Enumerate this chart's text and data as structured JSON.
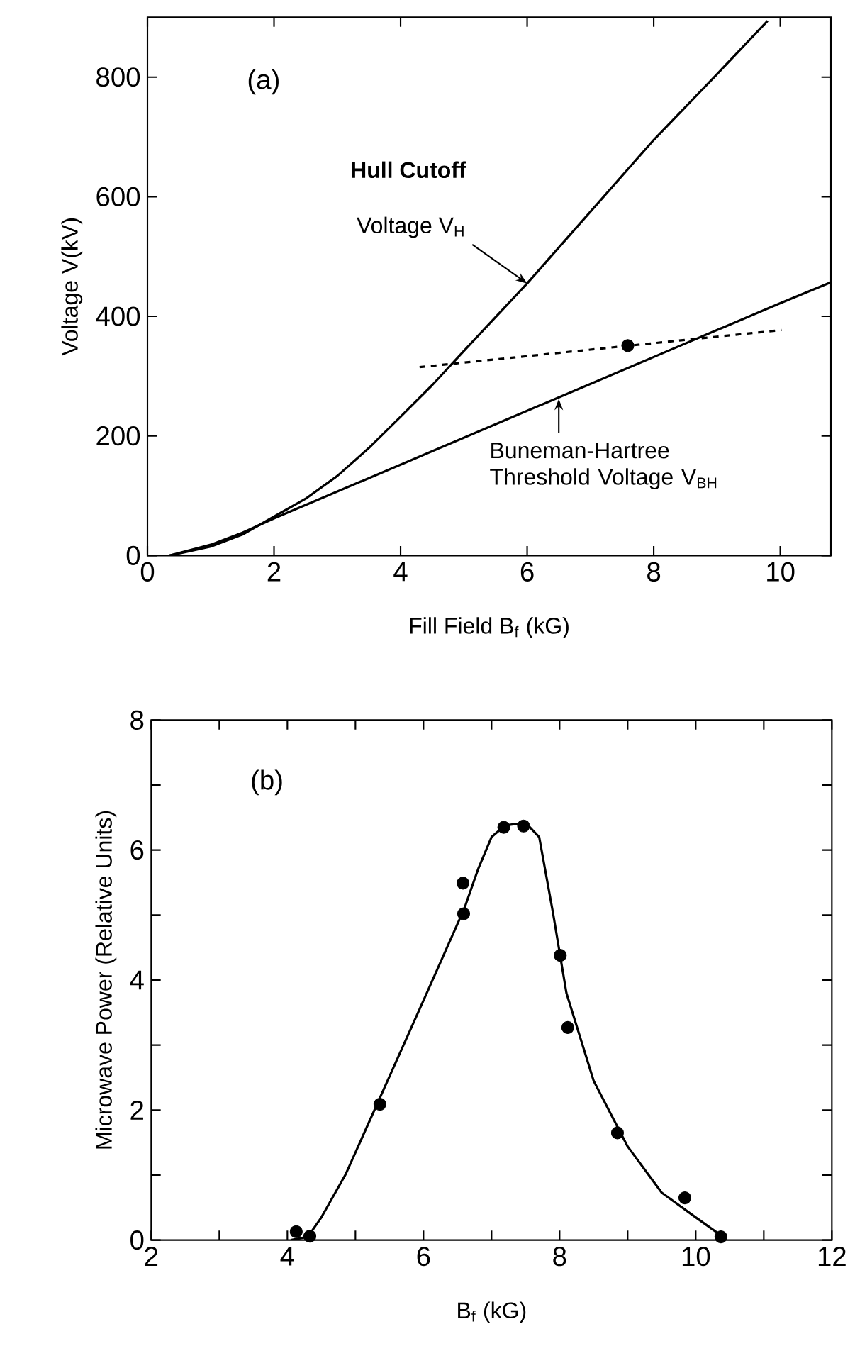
{
  "chart_data": [
    {
      "type": "line",
      "xlabel": "Fill Field B$_{f}$ (kG)",
      "ylabel": "Voltage V(kV)",
      "xlim": [
        0,
        10.8
      ],
      "ylim": [
        0,
        900
      ],
      "xticks": [
        0,
        2,
        4,
        6,
        8,
        10
      ],
      "yticks": [
        0,
        200,
        400,
        600,
        800
      ],
      "grid": false,
      "series": [
        {
          "color": "#000000",
          "line_style": "solid",
          "marker": "none",
          "x": [
            0.35,
            1,
            1.5,
            2,
            2.5,
            3,
            3.5,
            4,
            4.5,
            5,
            6,
            7,
            8,
            9,
            9.8
          ],
          "values": [
            0,
            15,
            35,
            65,
            95,
            133,
            180,
            232,
            285,
            342,
            455,
            575,
            695,
            805,
            894
          ]
        },
        {
          "color": "#000000",
          "line_style": "solid",
          "marker": "none",
          "x": [
            0.35,
            1,
            1.5,
            2,
            4,
            6,
            8,
            10,
            10.8
          ],
          "values": [
            0,
            18,
            38,
            62,
            152,
            242,
            332,
            422,
            457
          ]
        },
        {
          "color": "#000000",
          "line_style": "dashed",
          "marker": "none",
          "x": [
            4.3,
            10.02
          ],
          "values": [
            315,
            377
          ]
        },
        {
          "type": "scatter",
          "color": "#000000",
          "marker": "circle",
          "x": [
            7.59
          ],
          "values": [
            351
          ]
        }
      ],
      "annotations": [
        "(a)",
        "Hull Cutoff",
        {
          "text": "Voltage V$_{H}$",
          "x": 6,
          "y": 455
        },
        {
          "text": "Buneman-Hartree Threshold Voltage V$_{BH}$",
          "x": 6.5,
          "y": 262
        }
      ]
    },
    {
      "type": "scatter",
      "xlabel": "B$_{f}$ (kG)",
      "ylabel": "Microwave Power  (Relative Units)",
      "xlim": [
        2,
        12
      ],
      "ylim": [
        0,
        8
      ],
      "xticks": [
        2,
        {
          "value": 3,
          "label": null
        },
        4,
        {
          "value": 5,
          "label": null
        },
        6,
        {
          "value": 7,
          "label": null
        },
        8,
        {
          "value": 9,
          "label": null
        },
        10,
        {
          "value": 11,
          "label": null
        },
        12
      ],
      "yticks": [
        0,
        {
          "value": 1,
          "label": null
        },
        2,
        {
          "value": 3,
          "label": null
        },
        4,
        {
          "value": 5,
          "label": null
        },
        6,
        {
          "value": 7,
          "label": null
        },
        8
      ],
      "grid": false,
      "series": [
        {
          "color": "#000000",
          "marker": "circle",
          "x": [
            4.13,
            4.33,
            5.36,
            6.58,
            6.59,
            7.18,
            7.47,
            8.01,
            8.12,
            8.85,
            9.84,
            10.37
          ],
          "values": [
            0.13,
            0.06,
            2.09,
            5.49,
            5.02,
            6.35,
            6.37,
            4.38,
            3.27,
            1.65,
            0.65,
            0.05
          ]
        },
        {
          "type": "line",
          "color": "#000000",
          "line_style": "solid",
          "marker": "none",
          "x": [
            4.05,
            4.3,
            4.5,
            4.86,
            6.04,
            6.6,
            6.8,
            7.0,
            7.2,
            7.5,
            7.7,
            7.9,
            8.1,
            8.5,
            9,
            9.5,
            10,
            10.4
          ],
          "values": [
            0,
            0.05,
            0.35,
            1.02,
            3.78,
            5.1,
            5.7,
            6.2,
            6.38,
            6.42,
            6.2,
            5.05,
            3.8,
            2.45,
            1.44,
            0.73,
            0.35,
            0.05
          ]
        }
      ],
      "annotations": [
        "(b)"
      ]
    }
  ]
}
